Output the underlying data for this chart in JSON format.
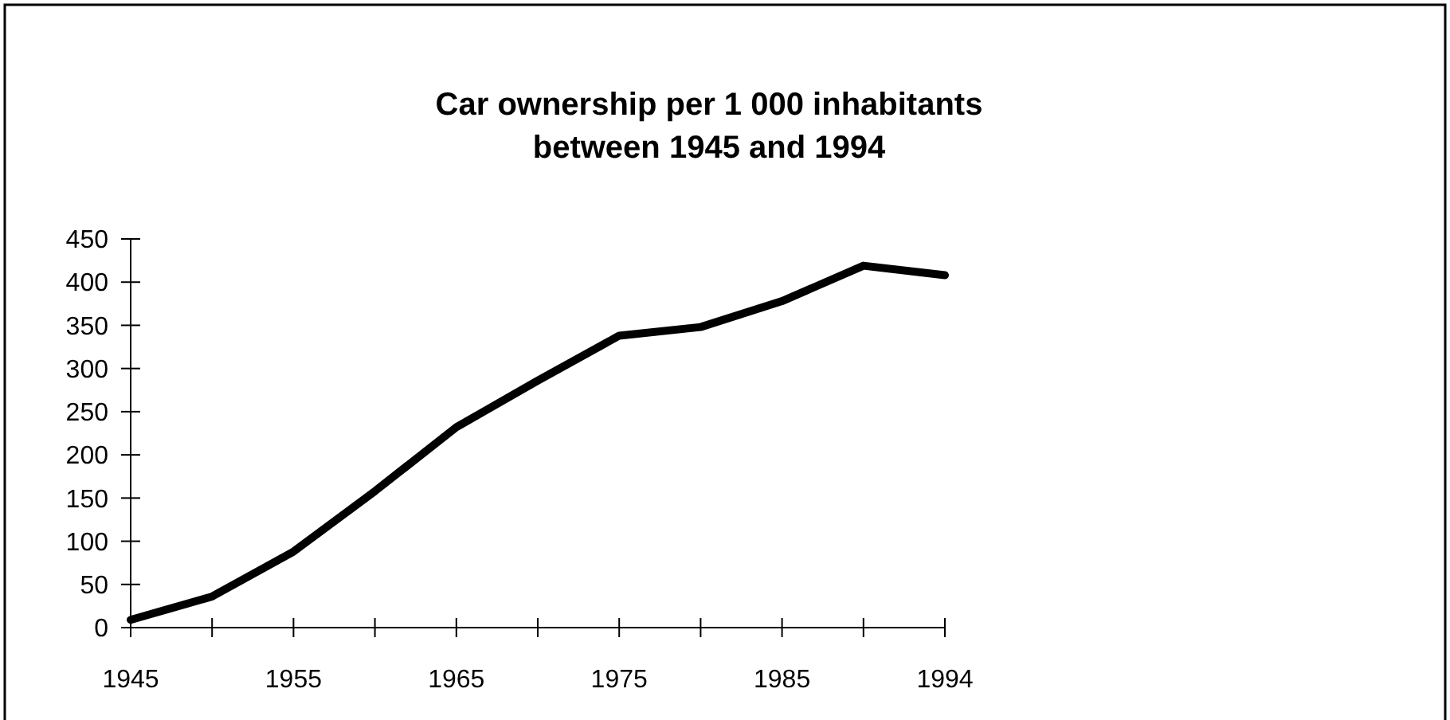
{
  "chart_data": {
    "type": "line",
    "title": "Car ownership per 1 000 inhabitants\nbetween 1945 and 1994",
    "categories": [
      "1945",
      null,
      "1955",
      null,
      "1965",
      null,
      "1975",
      null,
      "1985",
      null,
      "1994"
    ],
    "series": [
      {
        "color": "#000000",
        "values": [
          9,
          36,
          88,
          158,
          232,
          286,
          338,
          348,
          378,
          419,
          408
        ]
      }
    ],
    "ylim": [
      0,
      450
    ],
    "yticks": [
      0,
      50,
      100,
      150,
      200,
      250,
      300,
      350,
      400,
      450
    ],
    "grid": false,
    "line_style": "solid"
  }
}
